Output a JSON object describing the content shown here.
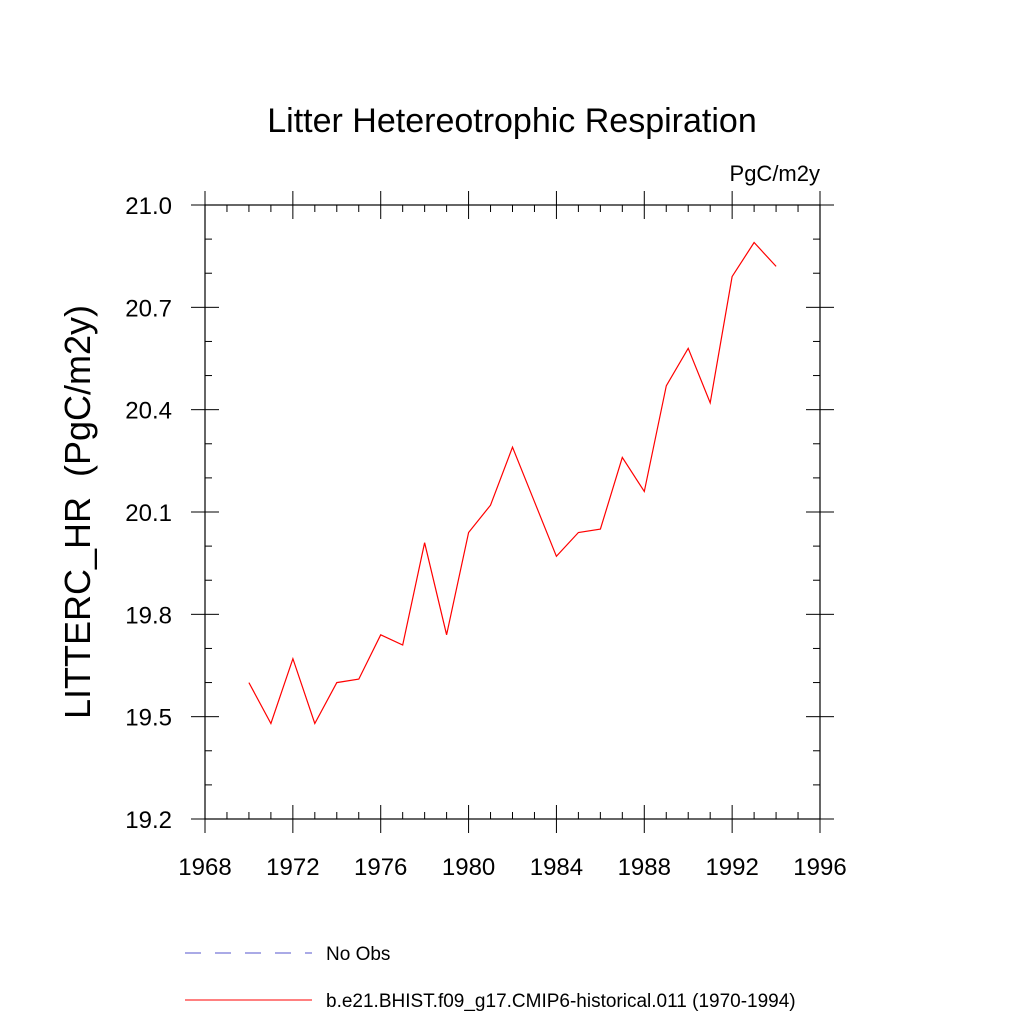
{
  "chart_data": {
    "type": "line",
    "title": "Litter Hetereotrophic Respiration",
    "units": "PgC/m2y",
    "ylabel": "LITTERC_HR  (PgC/m2y)",
    "xlabel": "",
    "xlim": [
      1968,
      1996
    ],
    "ylim": [
      19.2,
      21.0
    ],
    "xticks": [
      1968,
      1972,
      1976,
      1980,
      1984,
      1988,
      1992,
      1996
    ],
    "xtick_labels": [
      "1968",
      "1972",
      "1976",
      "1980",
      "1984",
      "1988",
      "1992",
      "1996"
    ],
    "yticks": [
      19.2,
      19.5,
      19.8,
      20.1,
      20.4,
      20.7,
      21.0
    ],
    "ytick_labels": [
      "19.2",
      "19.5",
      "19.8",
      "20.1",
      "20.4",
      "20.7",
      "21.0"
    ],
    "grid": false,
    "legend_placement": "bottom",
    "series": [
      {
        "name": "b.e21.BHIST.f09_g17.CMIP6-historical.011 (1970-1994)",
        "color": "#ff0000",
        "dash": "solid",
        "x": [
          1970,
          1971,
          1972,
          1973,
          1974,
          1975,
          1976,
          1977,
          1978,
          1979,
          1980,
          1981,
          1982,
          1983,
          1984,
          1985,
          1986,
          1987,
          1988,
          1989,
          1990,
          1991,
          1992,
          1993,
          1994
        ],
        "y": [
          19.6,
          19.48,
          19.67,
          19.48,
          19.6,
          19.61,
          19.74,
          19.71,
          20.01,
          19.74,
          20.04,
          20.12,
          20.29,
          20.13,
          19.97,
          20.04,
          20.05,
          20.26,
          20.16,
          20.47,
          20.58,
          20.42,
          20.79,
          20.89,
          20.82
        ]
      },
      {
        "name": "No Obs",
        "color": "#5555cc",
        "dash": "dashed",
        "x": [],
        "y": []
      }
    ]
  }
}
